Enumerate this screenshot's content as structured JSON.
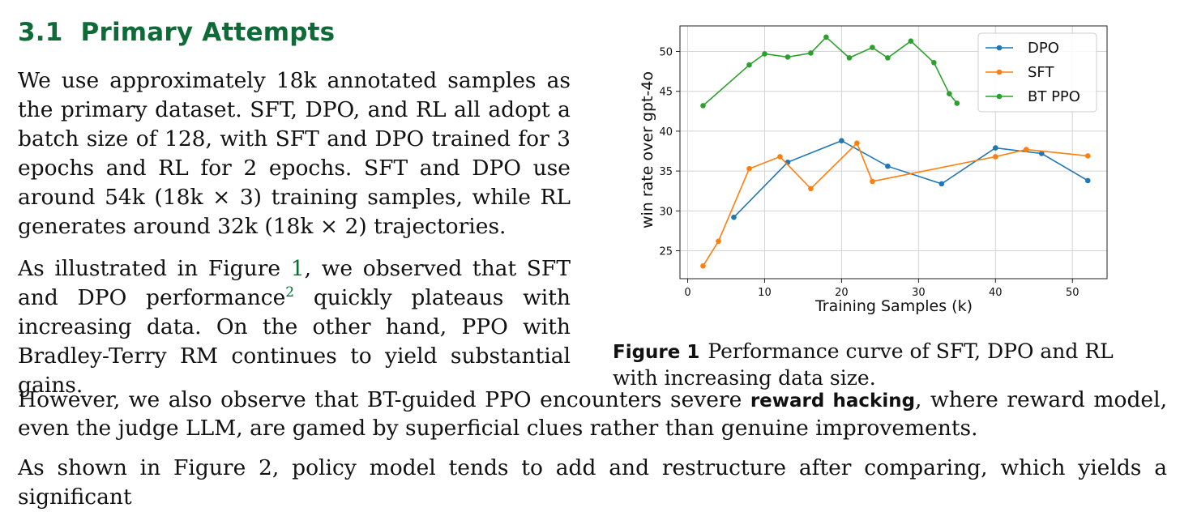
{
  "section": {
    "number": "3.1",
    "title": "Primary Attempts"
  },
  "paragraphs": {
    "p1": "We use approximately 18k annotated samples as the primary dataset. SFT, DPO, and RL all adopt a batch size of 128, with SFT and DPO trained for 3 epochs and RL for 2 epochs. SFT and DPO use around 54k (18k × 3) training samples, while RL generates around 32k (18k × 2) trajectories.",
    "p2_a": "As illustrated in Figure ",
    "p2_ref": "1",
    "p2_b": ", we observed that SFT and DPO performance",
    "p2_sup": "2",
    "p2_c": " quickly plateaus with increasing data. On the other hand, PPO with Bradley-Terry RM continues to yield substantial gains.",
    "p3_a": "However, we also observe that BT-guided PPO encounters severe ",
    "p3_bold": "reward hacking",
    "p3_b": ", where reward model, even the judge LLM, are gamed by superficial clues rather than genuine improvements.",
    "p4": "As shown in Figure 2, policy model tends to add and restructure after comparing, which yields a significant"
  },
  "figure": {
    "label": "Figure 1",
    "caption": "Performance curve of SFT, DPO and RL with increasing data size."
  },
  "chart_data": {
    "type": "line",
    "xlabel": "Training Samples (k)",
    "ylabel": "win rate over gpt-4o",
    "xlim": [
      -1,
      54.5
    ],
    "ylim": [
      21.5,
      53.2
    ],
    "xticks": [
      0,
      10,
      20,
      30,
      40,
      50
    ],
    "yticks": [
      25,
      30,
      35,
      40,
      45,
      50
    ],
    "grid": true,
    "legend": "top-right",
    "series": [
      {
        "name": "DPO",
        "color": "#1f77b4",
        "x": [
          6,
          13,
          20,
          26,
          33,
          40,
          46,
          52
        ],
        "y": [
          29.2,
          36.1,
          38.8,
          35.6,
          33.4,
          37.9,
          37.2,
          33.8
        ]
      },
      {
        "name": "SFT",
        "color": "#ff7f0e",
        "x": [
          2,
          4,
          8,
          12,
          16,
          22,
          24,
          40,
          44,
          52
        ],
        "y": [
          23.1,
          26.2,
          35.3,
          36.8,
          32.8,
          38.5,
          33.7,
          36.8,
          37.7,
          36.9
        ]
      },
      {
        "name": "BT PPO",
        "color": "#2ca02c",
        "x": [
          2,
          8,
          10,
          13,
          16,
          18,
          21,
          24,
          26,
          29,
          32,
          34,
          35
        ],
        "y": [
          43.2,
          48.3,
          49.7,
          49.3,
          49.8,
          51.8,
          49.2,
          50.5,
          49.2,
          51.3,
          48.6,
          44.7,
          43.5
        ]
      }
    ]
  }
}
